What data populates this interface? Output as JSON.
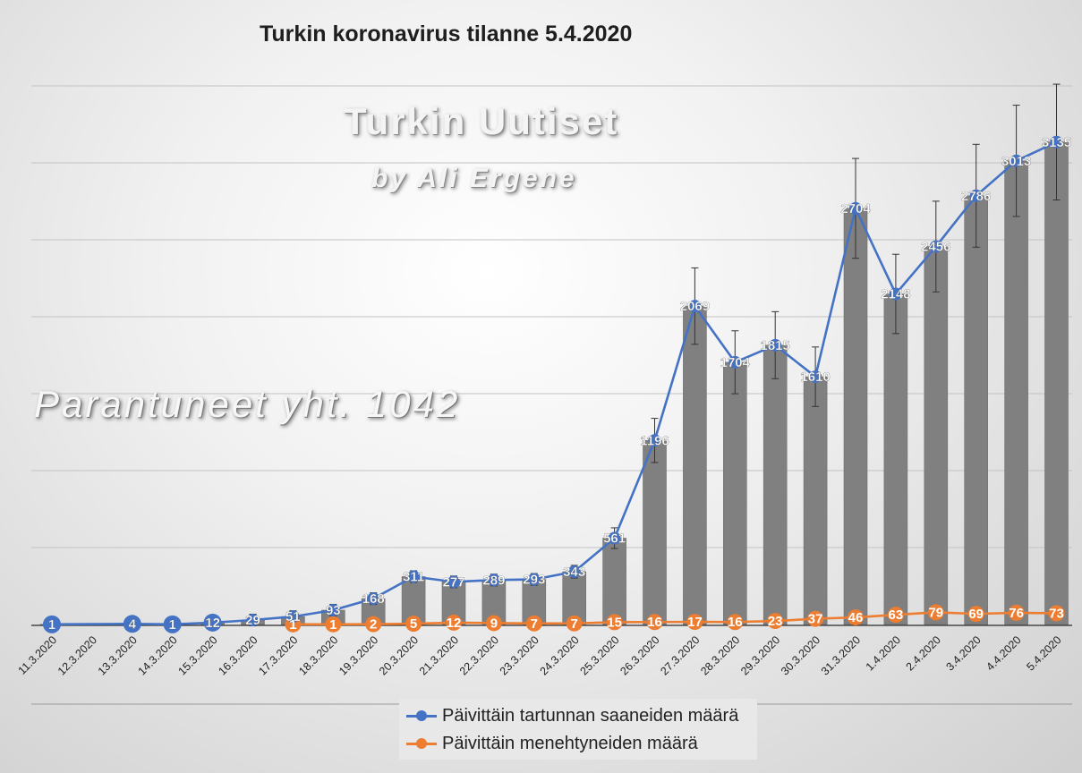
{
  "chart_data": {
    "type": "bar",
    "title": "Turkin koronavirus tilanne 5.4.2020",
    "categories": [
      "11.3.2020",
      "12.3.2020",
      "13.3.2020",
      "14.3.2020",
      "15.3.2020",
      "16.3.2020",
      "17.3.2020",
      "18.3.2020",
      "19.3.2020",
      "20.3.2020",
      "21.3.2020",
      "22.3.2020",
      "23.3.2020",
      "24.3.2020",
      "25.3.2020",
      "26.3.2020",
      "27.3.2020",
      "28.3.2020",
      "29.3.2020",
      "30.3.2020",
      "31.3.2020",
      "1.4.2020",
      "2.4.2020",
      "3.4.2020",
      "4.4.2020",
      "5.4.2020"
    ],
    "series": [
      {
        "name": "Päivittäin tartunnan saaneiden määrä",
        "type": "line+bar",
        "color": "#4472c4",
        "values": [
          1,
          null,
          4,
          1,
          12,
          29,
          51,
          93,
          168,
          311,
          277,
          289,
          293,
          343,
          561,
          1196,
          2069,
          1704,
          1815,
          1610,
          2704,
          2148,
          2456,
          2786,
          3013,
          3135
        ],
        "labels": [
          "1",
          "",
          "4",
          "1",
          "12",
          "29",
          "51",
          "93",
          "168",
          "311",
          "277",
          "289",
          "293",
          "343",
          "561",
          "1196",
          "2069",
          "1704",
          "1815",
          "1610",
          "2704",
          "2148",
          "2456",
          "2786",
          "3013",
          "3135"
        ]
      },
      {
        "name": "Päivittäin menehtyneiden määrä",
        "type": "line",
        "color": "#ed7d31",
        "values": [
          null,
          null,
          null,
          null,
          null,
          null,
          1,
          1,
          2,
          5,
          12,
          9,
          7,
          7,
          15,
          16,
          17,
          16,
          23,
          37,
          46,
          63,
          79,
          69,
          76,
          73
        ]
      }
    ],
    "ylim": [
      0,
      4000
    ],
    "bar_color": "#808080",
    "error_bars": true,
    "grid": true,
    "legend_position": "bottom"
  },
  "watermark": {
    "title": "Turkin Uutiset",
    "author": "by Ali Ergene"
  },
  "annotation": {
    "recovered": "Parantuneet yht. 1042"
  }
}
